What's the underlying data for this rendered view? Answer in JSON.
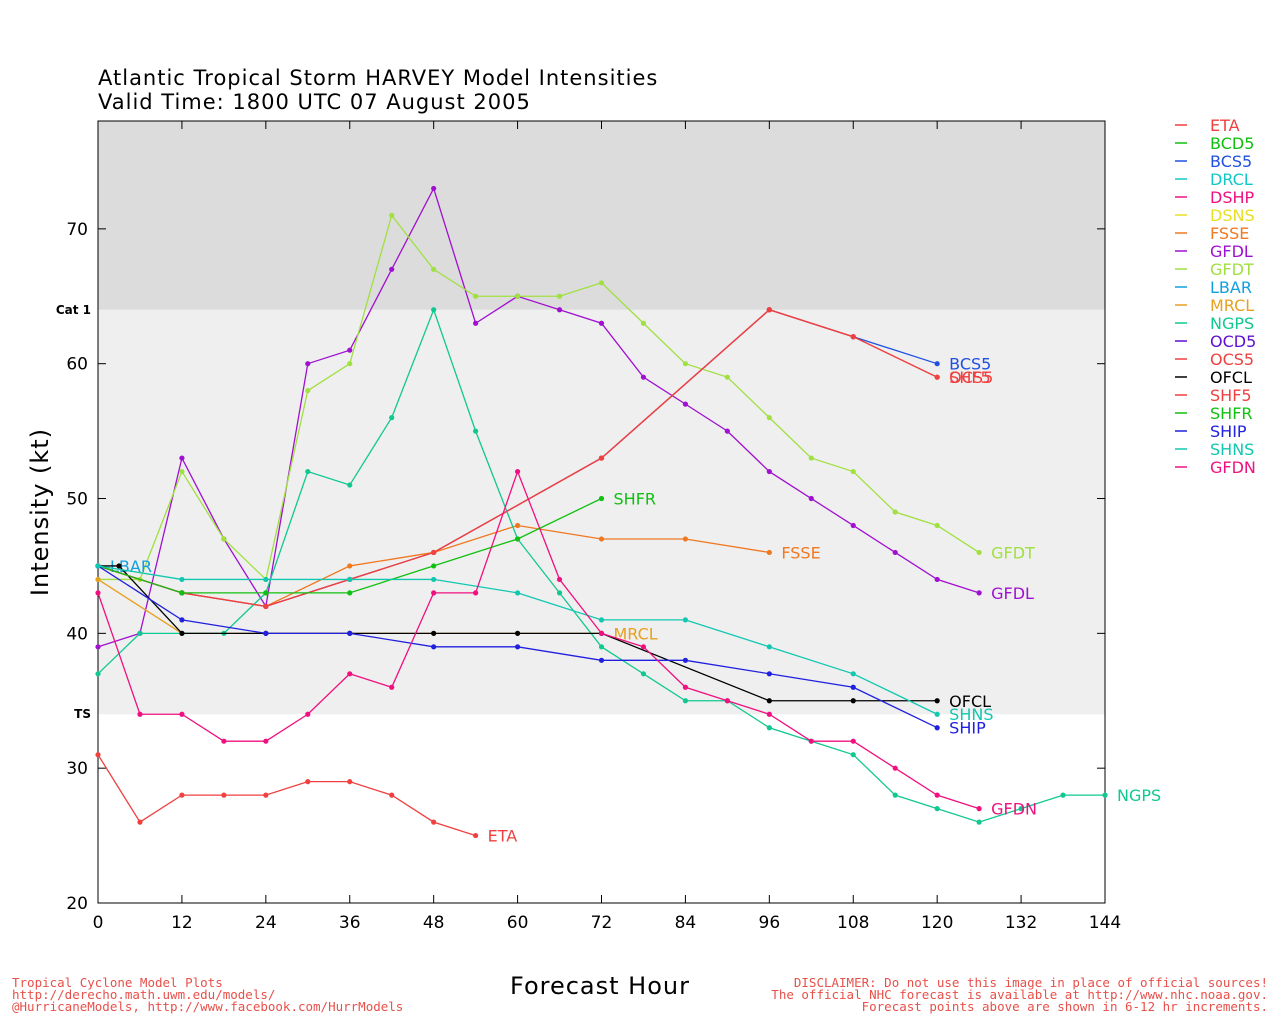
{
  "title_line1": "Atlantic Tropical Storm HARVEY Model Intensities",
  "title_line2": "Valid Time: 1800 UTC 07 August 2005",
  "footer_left": [
    "Tropical Cyclone Model Plots",
    "http://derecho.math.uwm.edu/models/",
    "@HurricaneModels, http://www.facebook.com/HurrModels"
  ],
  "footer_right": [
    "DISCLAIMER: Do not use this image in place of official sources!",
    "The official NHC forecast is available at http://www.nhc.noaa.gov.",
    "Forecast points above are shown in 6-12 hr increments."
  ],
  "chart_data": {
    "type": "line",
    "xlabel": "Forecast Hour",
    "ylabel": "Intensity (kt)",
    "xlim": [
      0,
      144
    ],
    "ylim": [
      20,
      78
    ],
    "xticks": [
      0,
      12,
      24,
      36,
      48,
      60,
      72,
      84,
      96,
      108,
      120,
      132,
      144
    ],
    "yticks": [
      20,
      30,
      40,
      50,
      60,
      70
    ],
    "category_bands": [
      {
        "label": "TS",
        "from": 34,
        "to": 64,
        "color": "#efefef"
      },
      {
        "label": "Cat 1",
        "from": 64,
        "to": 78,
        "color": "#dcdcdc"
      }
    ],
    "legend_position": "right-outside",
    "series": [
      {
        "name": "ETA",
        "color": "#f04040",
        "x": [
          0,
          6,
          12,
          18,
          24,
          30,
          36,
          42,
          48,
          54
        ],
        "y": [
          31,
          26,
          28,
          28,
          28,
          29,
          29,
          28,
          26,
          25
        ],
        "end_label": "ETA"
      },
      {
        "name": "BCD5",
        "color": "#10c010",
        "x": [],
        "y": []
      },
      {
        "name": "BCS5",
        "color": "#2050e0",
        "x": [
          0,
          12,
          24,
          36,
          48,
          72,
          96,
          108,
          120
        ],
        "y": [
          45,
          43,
          42,
          44,
          46,
          53,
          64,
          62,
          60
        ],
        "end_label": "BCS5"
      },
      {
        "name": "DRCL",
        "color": "#10c8c8",
        "x": [],
        "y": []
      },
      {
        "name": "DSHP",
        "color": "#f01080",
        "x": [],
        "y": []
      },
      {
        "name": "DSNS",
        "color": "#e8e020",
        "x": [],
        "y": []
      },
      {
        "name": "FSSE",
        "color": "#f07820",
        "x": [
          0,
          12,
          24,
          36,
          48,
          60,
          72,
          84,
          96
        ],
        "y": [
          45,
          43,
          42,
          45,
          46,
          48,
          47,
          47,
          46
        ],
        "end_label": "FSSE"
      },
      {
        "name": "GFDL",
        "color": "#a010d0",
        "x": [
          0,
          6,
          12,
          18,
          24,
          30,
          36,
          42,
          48,
          54,
          60,
          66,
          72,
          78,
          84,
          90,
          96,
          102,
          108,
          114,
          120,
          126
        ],
        "y": [
          39,
          40,
          53,
          47,
          42,
          60,
          61,
          67,
          73,
          63,
          65,
          64,
          63,
          59,
          57,
          55,
          52,
          50,
          48,
          46,
          44,
          43
        ],
        "end_label": "GFDL"
      },
      {
        "name": "GFDT",
        "color": "#a0e040",
        "x": [
          0,
          6,
          12,
          18,
          24,
          30,
          36,
          42,
          48,
          54,
          60,
          66,
          72,
          78,
          84,
          90,
          96,
          102,
          108,
          114,
          120,
          126
        ],
        "y": [
          44,
          44,
          52,
          47,
          44,
          58,
          60,
          71,
          67,
          65,
          65,
          65,
          66,
          63,
          60,
          59,
          56,
          53,
          52,
          49,
          48,
          46
        ],
        "end_label": "GFDT"
      },
      {
        "name": "LBAR",
        "color": "#10a0e0",
        "x": [],
        "y": [],
        "end_label": "LBAR",
        "label_x": 0,
        "label_y": 45
      },
      {
        "name": "MRCL",
        "color": "#e8a020",
        "x": [
          0,
          12,
          24,
          36,
          48,
          60,
          72
        ],
        "y": [
          44,
          40,
          40,
          40,
          40,
          40,
          40
        ],
        "end_label": "MRCL"
      },
      {
        "name": "NGPS",
        "color": "#10c890",
        "x": [
          0,
          6,
          12,
          18,
          24,
          30,
          36,
          42,
          48,
          54,
          60,
          66,
          72,
          78,
          84,
          90,
          96,
          102,
          108,
          114,
          120,
          126,
          132,
          138,
          144
        ],
        "y": [
          37,
          40,
          40,
          40,
          43,
          52,
          51,
          56,
          64,
          55,
          47,
          43,
          39,
          37,
          35,
          35,
          33,
          32,
          31,
          28,
          27,
          26,
          27,
          28,
          28
        ],
        "end_label": "NGPS"
      },
      {
        "name": "OCD5",
        "color": "#6010d0",
        "x": [],
        "y": []
      },
      {
        "name": "OCS5",
        "color": "#f04040",
        "x": [
          0,
          12,
          24,
          36,
          48,
          72,
          96,
          108,
          120
        ],
        "y": [
          45,
          43,
          42,
          44,
          46,
          53,
          64,
          62,
          59
        ],
        "end_label": "OCS5"
      },
      {
        "name": "OFCL",
        "color": "#000000",
        "x": [
          0,
          3,
          12,
          24,
          36,
          48,
          60,
          72,
          96,
          108,
          120
        ],
        "y": [
          45,
          45,
          40,
          40,
          40,
          40,
          40,
          40,
          35,
          35,
          35
        ],
        "end_label": "OFCL"
      },
      {
        "name": "SHF5",
        "color": "#f04040",
        "x": [
          0,
          12,
          24,
          36,
          48,
          72,
          96,
          108,
          120
        ],
        "y": [
          45,
          43,
          42,
          44,
          46,
          53,
          64,
          62,
          59
        ],
        "end_label": "SHF5"
      },
      {
        "name": "SHFR",
        "color": "#10c010",
        "x": [
          0,
          12,
          24,
          36,
          48,
          60,
          72
        ],
        "y": [
          45,
          43,
          43,
          43,
          45,
          47,
          50
        ],
        "end_label": "SHFR"
      },
      {
        "name": "SHIP",
        "color": "#2020e0",
        "x": [
          0,
          12,
          24,
          36,
          48,
          60,
          72,
          84,
          96,
          108,
          120
        ],
        "y": [
          45,
          41,
          40,
          40,
          39,
          39,
          38,
          38,
          37,
          36,
          33
        ],
        "end_label": "SHIP"
      },
      {
        "name": "SHNS",
        "color": "#10c8b0",
        "x": [
          0,
          12,
          24,
          36,
          48,
          60,
          72,
          84,
          96,
          108,
          120
        ],
        "y": [
          45,
          44,
          44,
          44,
          44,
          43,
          41,
          41,
          39,
          37,
          34
        ],
        "end_label": "SHNS"
      },
      {
        "name": "GFDN",
        "color": "#f01080",
        "x": [
          0,
          6,
          12,
          18,
          24,
          30,
          36,
          42,
          48,
          54,
          60,
          66,
          72,
          78,
          84,
          90,
          96,
          102,
          108,
          114,
          120,
          126
        ],
        "y": [
          43,
          34,
          34,
          32,
          32,
          34,
          37,
          36,
          43,
          43,
          52,
          44,
          40,
          39,
          36,
          35,
          34,
          32,
          32,
          30,
          28,
          27
        ],
        "end_label": "GFDN"
      }
    ]
  }
}
